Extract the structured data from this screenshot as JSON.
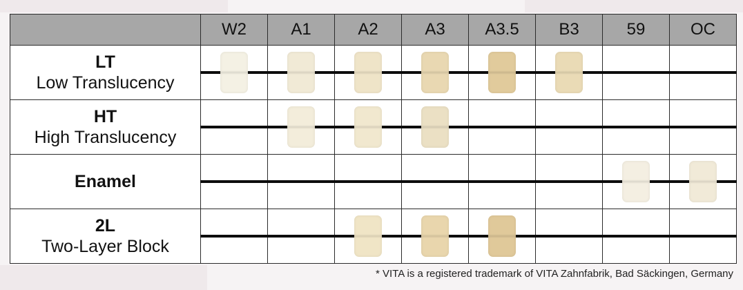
{
  "header": {
    "columns": [
      "W2",
      "A1",
      "A2",
      "A3",
      "A3.5",
      "B3",
      "59",
      "OC"
    ]
  },
  "rows": [
    {
      "code": "LT",
      "label": "Low Translucency",
      "blocks": [
        {
          "name": "W2",
          "color": "#f4f1e4"
        },
        {
          "name": "A1",
          "color": "#f1ead6"
        },
        {
          "name": "A2",
          "color": "#efe4c8"
        },
        {
          "name": "A3",
          "color": "#e9d8b2"
        },
        {
          "name": "A3.5",
          "color": "#e1cb9c"
        },
        {
          "name": "B3",
          "color": "#eadbb6"
        },
        null,
        null
      ]
    },
    {
      "code": "HT",
      "label": "High Translucency",
      "blocks": [
        null,
        {
          "name": "A1",
          "color": "#f3eddb"
        },
        {
          "name": "A2",
          "color": "#f1e8cf"
        },
        {
          "name": "A3",
          "color": "#ebe0c4"
        },
        null,
        null,
        null,
        null
      ]
    },
    {
      "code": "Enamel",
      "label": "",
      "blocks": [
        null,
        null,
        null,
        null,
        null,
        null,
        {
          "name": "59",
          "color": "#f4efe2"
        },
        {
          "name": "OC",
          "color": "#f1ead8"
        }
      ]
    },
    {
      "code": "2L",
      "label": "Two-Layer Block",
      "blocks": [
        null,
        null,
        {
          "name": "A2",
          "color": "#f0e5c6"
        },
        {
          "name": "A3",
          "color": "#e9d6ad"
        },
        {
          "name": "A3.5",
          "color": "#e0c99a"
        },
        null,
        null,
        null
      ]
    }
  ],
  "footnote": "* VITA is a registered trademark of VITA Zahnfabrik, Bad Säckingen, Germany"
}
